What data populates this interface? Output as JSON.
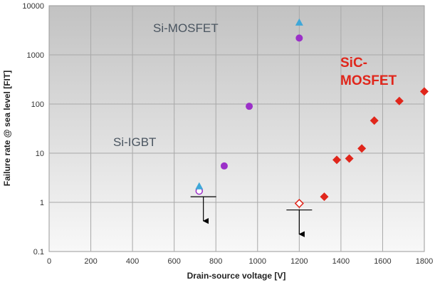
{
  "chart_data": {
    "type": "scatter",
    "xlabel": "Drain-source voltage [V]",
    "ylabel": "Failure rate @ sea level [FIT]",
    "xlim": [
      0,
      1800
    ],
    "ylim": [
      0.1,
      10000
    ],
    "yscale": "log",
    "x_ticks": [
      0,
      200,
      400,
      600,
      800,
      1000,
      1200,
      1400,
      1600,
      1800
    ],
    "x_tick_labels": [
      "0",
      "200",
      "400",
      "600",
      "800",
      "1000",
      "1200",
      "1400",
      "1600",
      "1800"
    ],
    "y_ticks": [
      0.1,
      1,
      10,
      100,
      1000,
      10000
    ],
    "y_tick_labels": [
      "0.1",
      "1",
      "10",
      "100",
      "1000",
      "10000"
    ],
    "grid": true,
    "background": "gray vertical gradient",
    "annotations": [
      {
        "text": "Si-MOSFET",
        "color": "#4a5560"
      },
      {
        "text": "Si-IGBT",
        "color": "#4a5560"
      },
      {
        "text": "SiC-",
        "color": "#e0261b"
      },
      {
        "text": "MOSFET",
        "color": "#e0261b"
      }
    ],
    "series": [
      {
        "marker": "circle",
        "color": "#9b30c8",
        "x": [
          840,
          960,
          1200
        ],
        "y": [
          5.5,
          90,
          2200
        ]
      },
      {
        "marker": "circle-open",
        "color": "#9b30c8",
        "x": [
          720
        ],
        "y": [
          1.7
        ]
      },
      {
        "marker": "triangle",
        "color": "#3fa7d8",
        "x": [
          720,
          1200
        ],
        "y": [
          2.1,
          4500
        ]
      },
      {
        "marker": "diamond",
        "color": "#e0261b",
        "x": [
          1320,
          1380,
          1440,
          1500,
          1560,
          1680,
          1800
        ],
        "y": [
          1.3,
          7.3,
          7.8,
          12.5,
          46,
          115,
          180
        ]
      },
      {
        "marker": "diamond-open",
        "color": "#e0261b",
        "x": [
          1200
        ],
        "y": [
          0.95
        ]
      }
    ],
    "upper_limit_arrows": [
      {
        "x": 740,
        "y": 1.3
      },
      {
        "x": 1200,
        "y": 0.7
      }
    ]
  }
}
